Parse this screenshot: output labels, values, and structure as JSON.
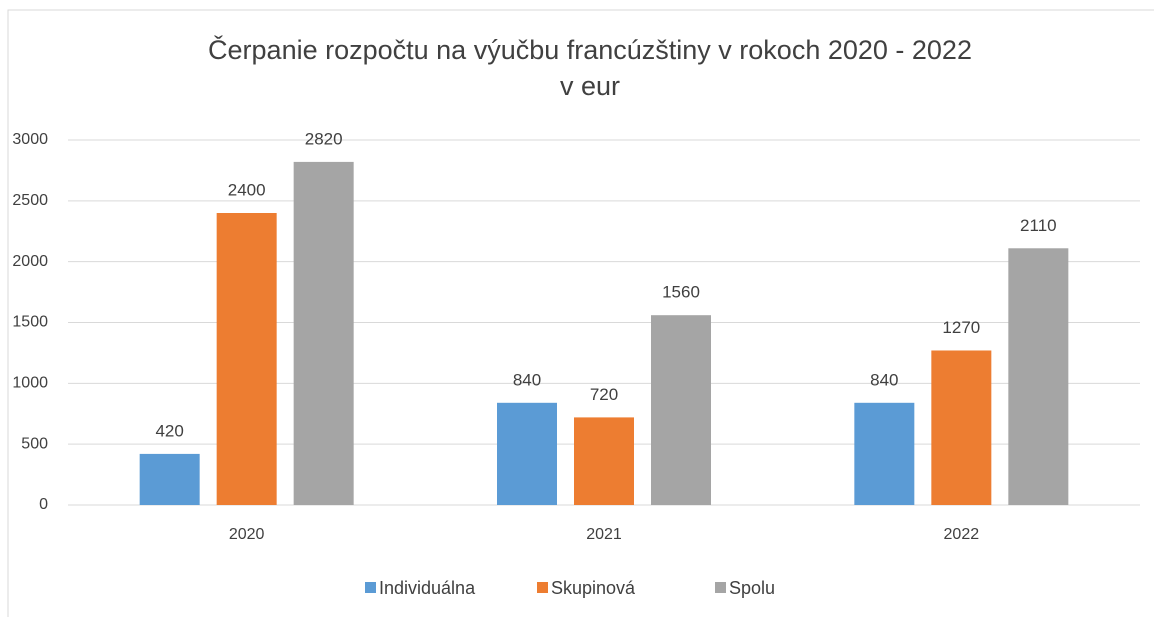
{
  "chart_data": {
    "type": "bar",
    "title": "Čerpanie rozpočtu na výučbu francúzštiny v rokoch 2020 - 2022",
    "subtitle": "v eur",
    "categories": [
      "2020",
      "2021",
      "2022"
    ],
    "series": [
      {
        "name": "Individuálna",
        "color": "#5b9bd5",
        "values": [
          420,
          840,
          840
        ]
      },
      {
        "name": "Skupinová",
        "color": "#ed7d31",
        "values": [
          2400,
          720,
          1270
        ]
      },
      {
        "name": "Spolu",
        "color": "#a5a5a5",
        "values": [
          2820,
          1560,
          2110
        ]
      }
    ],
    "ylim": [
      0,
      3000
    ],
    "yticks": [
      0,
      500,
      1000,
      1500,
      2000,
      2500,
      3000
    ],
    "grid": true,
    "legend": "bottom"
  }
}
